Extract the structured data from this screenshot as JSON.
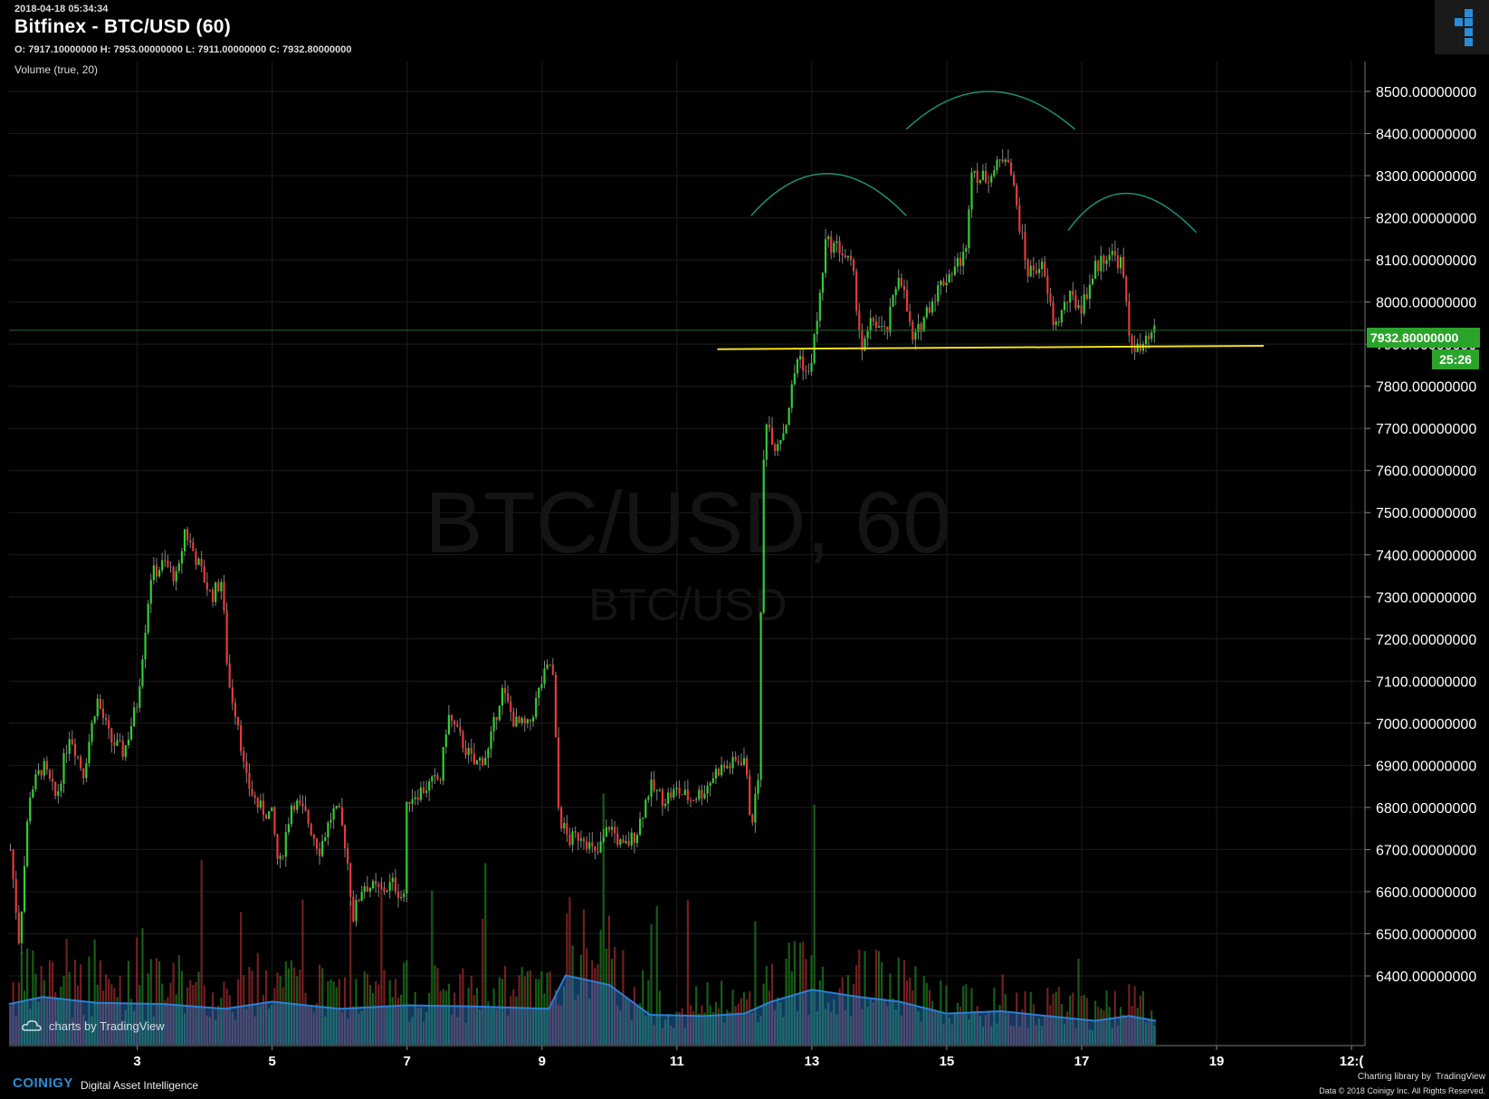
{
  "header": {
    "timestamp": "2018-04-18 05:34:34",
    "title": "Bitfinex - BTC/USD (60)",
    "ohlc": "O: 7917.10000000 H: 7953.00000000 L: 7911.00000000 C: 7932.80000000",
    "indicator": "Volume (true, 20)"
  },
  "watermark": {
    "main": "BTC/USD, 60",
    "sub": "BTC/USD"
  },
  "tv_badge": "charts by TradingView",
  "price_tag": {
    "last_price": "7932.80000000",
    "countdown": "25:26"
  },
  "footer": {
    "brand": "COINIGY",
    "tagline": "Digital Asset Intelligence",
    "library": "Charting library by",
    "library_name": "TradingView",
    "copyright": "Data © 2018",
    "copyright2": "Coinigy Inc. All Rights Reserved."
  },
  "colors": {
    "up": "#2fd12f",
    "down": "#e83a3a",
    "grid": "#1c1c1c",
    "trendline": "#f0e020",
    "pattern": "#1f8f7a",
    "volume_ma": "#2a7fd4",
    "badge": "#2aa52a"
  },
  "chart_data": {
    "type": "candlestick",
    "symbol": "BTC/USD",
    "exchange": "Bitfinex",
    "interval": "60",
    "y_ticks": [
      "8500.00000000",
      "8400.00000000",
      "8300.00000000",
      "8200.00000000",
      "8100.00000000",
      "8000.00000000",
      "7900.00000000",
      "7800.00000000",
      "7700.00000000",
      "7600.00000000",
      "7500.00000000",
      "7400.00000000",
      "7300.00000000",
      "7200.00000000",
      "7100.00000000",
      "7000.00000000",
      "6900.00000000",
      "6800.00000000",
      "6700.00000000",
      "6600.00000000",
      "6500.00000000",
      "6400.00000000"
    ],
    "y_range": [
      6320,
      8550
    ],
    "x_ticks": [
      "3",
      "5",
      "7",
      "9",
      "11",
      "13",
      "15",
      "17",
      "19",
      "12:("
    ],
    "x_tick_days": [
      3,
      5,
      7,
      9,
      11,
      13,
      15,
      17,
      19,
      21
    ],
    "x_range_days": [
      1.1,
      21.2
    ],
    "last_close": 7932.8,
    "price_path": [
      [
        1.12,
        6700
      ],
      [
        1.25,
        6480
      ],
      [
        1.4,
        6830
      ],
      [
        1.6,
        6900
      ],
      [
        1.8,
        6820
      ],
      [
        2.0,
        6980
      ],
      [
        2.2,
        6880
      ],
      [
        2.4,
        7060
      ],
      [
        2.6,
        6960
      ],
      [
        2.8,
        6930
      ],
      [
        3.0,
        7050
      ],
      [
        3.1,
        7200
      ],
      [
        3.2,
        7350
      ],
      [
        3.4,
        7380
      ],
      [
        3.6,
        7340
      ],
      [
        3.7,
        7460
      ],
      [
        3.9,
        7380
      ],
      [
        4.1,
        7300
      ],
      [
        4.25,
        7340
      ],
      [
        4.35,
        7100
      ],
      [
        4.5,
        7000
      ],
      [
        4.6,
        6870
      ],
      [
        4.8,
        6800
      ],
      [
        5.0,
        6780
      ],
      [
        5.1,
        6650
      ],
      [
        5.3,
        6820
      ],
      [
        5.5,
        6780
      ],
      [
        5.7,
        6700
      ],
      [
        5.9,
        6790
      ],
      [
        6.0,
        6780
      ],
      [
        6.1,
        6700
      ],
      [
        6.2,
        6540
      ],
      [
        6.35,
        6620
      ],
      [
        6.6,
        6600
      ],
      [
        6.8,
        6620
      ],
      [
        6.95,
        6580
      ],
      [
        7.0,
        6820
      ],
      [
        7.3,
        6850
      ],
      [
        7.5,
        6870
      ],
      [
        7.6,
        7020
      ],
      [
        7.8,
        6960
      ],
      [
        8.0,
        6900
      ],
      [
        8.2,
        6930
      ],
      [
        8.4,
        7080
      ],
      [
        8.6,
        7000
      ],
      [
        8.8,
        6990
      ],
      [
        9.0,
        7100
      ],
      [
        9.15,
        7150
      ],
      [
        9.25,
        6780
      ],
      [
        9.4,
        6720
      ],
      [
        9.6,
        6740
      ],
      [
        9.8,
        6680
      ],
      [
        10.0,
        6760
      ],
      [
        10.2,
        6700
      ],
      [
        10.4,
        6740
      ],
      [
        10.6,
        6850
      ],
      [
        10.8,
        6820
      ],
      [
        11.0,
        6840
      ],
      [
        11.2,
        6820
      ],
      [
        11.4,
        6840
      ],
      [
        11.6,
        6890
      ],
      [
        11.8,
        6900
      ],
      [
        12.0,
        6920
      ],
      [
        12.1,
        6760
      ],
      [
        12.2,
        6850
      ],
      [
        12.3,
        7740
      ],
      [
        12.45,
        7660
      ],
      [
        12.6,
        7700
      ],
      [
        12.8,
        7880
      ],
      [
        12.95,
        7820
      ],
      [
        13.1,
        7980
      ],
      [
        13.2,
        8140
      ],
      [
        13.4,
        8130
      ],
      [
        13.6,
        8080
      ],
      [
        13.75,
        7880
      ],
      [
        13.9,
        7960
      ],
      [
        14.1,
        7920
      ],
      [
        14.3,
        8080
      ],
      [
        14.5,
        7900
      ],
      [
        14.7,
        7980
      ],
      [
        14.9,
        8040
      ],
      [
        15.1,
        8080
      ],
      [
        15.3,
        8120
      ],
      [
        15.35,
        8330
      ],
      [
        15.5,
        8290
      ],
      [
        15.7,
        8310
      ],
      [
        15.9,
        8360
      ],
      [
        16.0,
        8260
      ],
      [
        16.2,
        8070
      ],
      [
        16.4,
        8090
      ],
      [
        16.6,
        7940
      ],
      [
        16.8,
        8010
      ],
      [
        17.0,
        7990
      ],
      [
        17.2,
        8080
      ],
      [
        17.4,
        8120
      ],
      [
        17.6,
        8090
      ],
      [
        17.7,
        7920
      ],
      [
        17.85,
        7880
      ],
      [
        18.0,
        7910
      ],
      [
        18.1,
        7932
      ]
    ],
    "volume_ma_path": [
      [
        1.1,
        0.34
      ],
      [
        1.6,
        0.4
      ],
      [
        2.4,
        0.35
      ],
      [
        3.4,
        0.34
      ],
      [
        4.3,
        0.3
      ],
      [
        5.0,
        0.36
      ],
      [
        6.0,
        0.3
      ],
      [
        7.0,
        0.33
      ],
      [
        8.0,
        0.32
      ],
      [
        9.1,
        0.3
      ],
      [
        9.35,
        0.58
      ],
      [
        10.0,
        0.5
      ],
      [
        10.6,
        0.25
      ],
      [
        11.4,
        0.24
      ],
      [
        12.0,
        0.26
      ],
      [
        12.4,
        0.36
      ],
      [
        13.0,
        0.46
      ],
      [
        13.7,
        0.4
      ],
      [
        14.3,
        0.36
      ],
      [
        15.0,
        0.26
      ],
      [
        15.8,
        0.28
      ],
      [
        16.5,
        0.24
      ],
      [
        17.2,
        0.2
      ],
      [
        17.7,
        0.24
      ],
      [
        18.1,
        0.2
      ]
    ],
    "trendline": {
      "from": [
        11.6,
        7888
      ],
      "to": [
        19.7,
        7896
      ]
    },
    "pattern_arcs": [
      {
        "name": "left-shoulder",
        "from": [
          12.1,
          8205
        ],
        "peak": [
          13.2,
          8305
        ],
        "to": [
          14.4,
          8205
        ]
      },
      {
        "name": "head",
        "from": [
          14.4,
          8410
        ],
        "peak": [
          15.6,
          8500
        ],
        "to": [
          16.9,
          8410
        ]
      },
      {
        "name": "right-shoulder",
        "from": [
          16.8,
          8170
        ],
        "peak": [
          17.6,
          8258
        ],
        "to": [
          18.7,
          8165
        ]
      }
    ]
  }
}
